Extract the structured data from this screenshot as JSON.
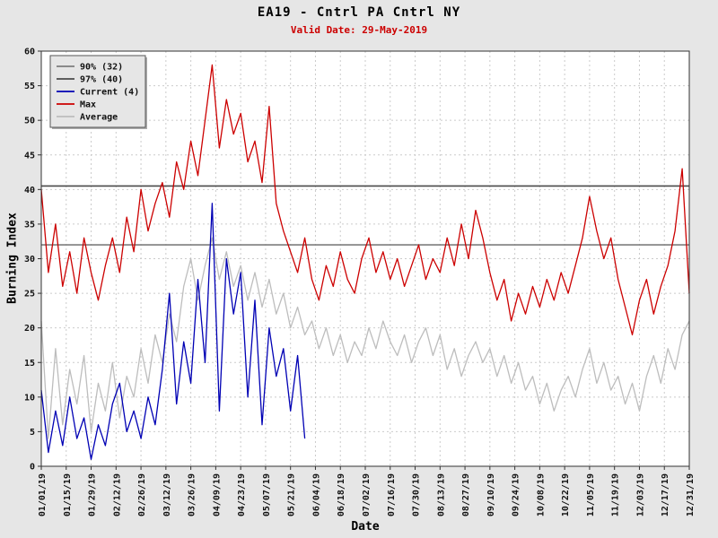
{
  "page": {
    "background": "#e6e6e6"
  },
  "chart_data": {
    "type": "line",
    "title": "EA19 - Cntrl PA Cntrl NY",
    "subtitle": "Valid Date: 29-May-2019",
    "subtitle_color": "#cc0000",
    "xlabel": "Date",
    "ylabel": "Burning Index",
    "ylim": [
      0,
      60
    ],
    "y_ticks": [
      0,
      5,
      10,
      15,
      20,
      25,
      30,
      35,
      40,
      45,
      50,
      55,
      60
    ],
    "x_range_days": [
      1,
      365
    ],
    "grid": "dashed",
    "x_ticks": [
      {
        "d": 1,
        "label": "01/01/19"
      },
      {
        "d": 15,
        "label": "01/15/19"
      },
      {
        "d": 29,
        "label": "01/29/19"
      },
      {
        "d": 43,
        "label": "02/12/19"
      },
      {
        "d": 57,
        "label": "02/26/19"
      },
      {
        "d": 71,
        "label": "03/12/19"
      },
      {
        "d": 85,
        "label": "03/26/19"
      },
      {
        "d": 99,
        "label": "04/09/19"
      },
      {
        "d": 113,
        "label": "04/23/19"
      },
      {
        "d": 127,
        "label": "05/07/19"
      },
      {
        "d": 141,
        "label": "05/21/19"
      },
      {
        "d": 155,
        "label": "06/04/19"
      },
      {
        "d": 169,
        "label": "06/18/19"
      },
      {
        "d": 183,
        "label": "07/02/19"
      },
      {
        "d": 197,
        "label": "07/16/19"
      },
      {
        "d": 211,
        "label": "07/30/19"
      },
      {
        "d": 225,
        "label": "08/13/19"
      },
      {
        "d": 239,
        "label": "08/27/19"
      },
      {
        "d": 253,
        "label": "09/10/19"
      },
      {
        "d": 267,
        "label": "09/24/19"
      },
      {
        "d": 281,
        "label": "10/08/19"
      },
      {
        "d": 295,
        "label": "10/22/19"
      },
      {
        "d": 309,
        "label": "11/05/19"
      },
      {
        "d": 323,
        "label": "11/19/19"
      },
      {
        "d": 337,
        "label": "12/03/19"
      },
      {
        "d": 351,
        "label": "12/17/19"
      },
      {
        "d": 365,
        "label": "12/31/19"
      }
    ],
    "thresholds": [
      {
        "name": "90pct",
        "label": "90% (32)",
        "value": 32,
        "color": "#7d7d7d"
      },
      {
        "name": "97pct",
        "label": "97% (40)",
        "value": 40.5,
        "color": "#4a4a4a"
      }
    ],
    "series": [
      {
        "name": "Average",
        "color": "#bdbdbd",
        "x_start": 1,
        "x_step": 4,
        "values": [
          21,
          4,
          17,
          6,
          14,
          9,
          16,
          5,
          12,
          8,
          15,
          7,
          13,
          10,
          17,
          12,
          19,
          15,
          22,
          18,
          26,
          30,
          24,
          29,
          33,
          27,
          31,
          26,
          29,
          24,
          28,
          23,
          27,
          22,
          25,
          20,
          23,
          19,
          21,
          17,
          20,
          16,
          19,
          15,
          18,
          16,
          20,
          17,
          21,
          18,
          16,
          19,
          15,
          18,
          20,
          16,
          19,
          14,
          17,
          13,
          16,
          18,
          15,
          17,
          13,
          16,
          12,
          15,
          11,
          13,
          9,
          12,
          8,
          11,
          13,
          10,
          14,
          17,
          12,
          15,
          11,
          13,
          9,
          12,
          8,
          13,
          16,
          12,
          17,
          14,
          19,
          21
        ]
      },
      {
        "name": "Current",
        "color": "#0000b4",
        "x_start": 1,
        "x_step": 4,
        "values": [
          11,
          2,
          8,
          3,
          10,
          4,
          7,
          1,
          6,
          3,
          9,
          12,
          5,
          8,
          4,
          10,
          6,
          14,
          25,
          9,
          18,
          12,
          27,
          15,
          38,
          8,
          30,
          22,
          28,
          10,
          24,
          6,
          20,
          13,
          17,
          8,
          16,
          4
        ]
      },
      {
        "name": "Max",
        "color": "#cc0000",
        "x_start": 1,
        "x_step": 4,
        "values": [
          40,
          28,
          35,
          26,
          31,
          25,
          33,
          28,
          24,
          29,
          33,
          28,
          36,
          31,
          40,
          34,
          38,
          41,
          36,
          44,
          40,
          47,
          42,
          50,
          58,
          46,
          53,
          48,
          51,
          44,
          47,
          41,
          52,
          38,
          34,
          31,
          28,
          33,
          27,
          24,
          29,
          26,
          31,
          27,
          25,
          30,
          33,
          28,
          31,
          27,
          30,
          26,
          29,
          32,
          27,
          30,
          28,
          33,
          29,
          35,
          30,
          37,
          33,
          28,
          24,
          27,
          21,
          25,
          22,
          26,
          23,
          27,
          24,
          28,
          25,
          29,
          33,
          39,
          34,
          30,
          33,
          27,
          23,
          19,
          24,
          27,
          22,
          26,
          29,
          34,
          43,
          25
        ]
      }
    ],
    "legend": {
      "position": "top-left",
      "items": [
        {
          "label": "90% (32)",
          "color": "#7d7d7d"
        },
        {
          "label": "97% (40)",
          "color": "#4a4a4a"
        },
        {
          "label": "Current (4)",
          "color": "#0000b4"
        },
        {
          "label": "Max",
          "color": "#cc0000"
        },
        {
          "label": "Average",
          "color": "#bdbdbd"
        }
      ]
    }
  }
}
